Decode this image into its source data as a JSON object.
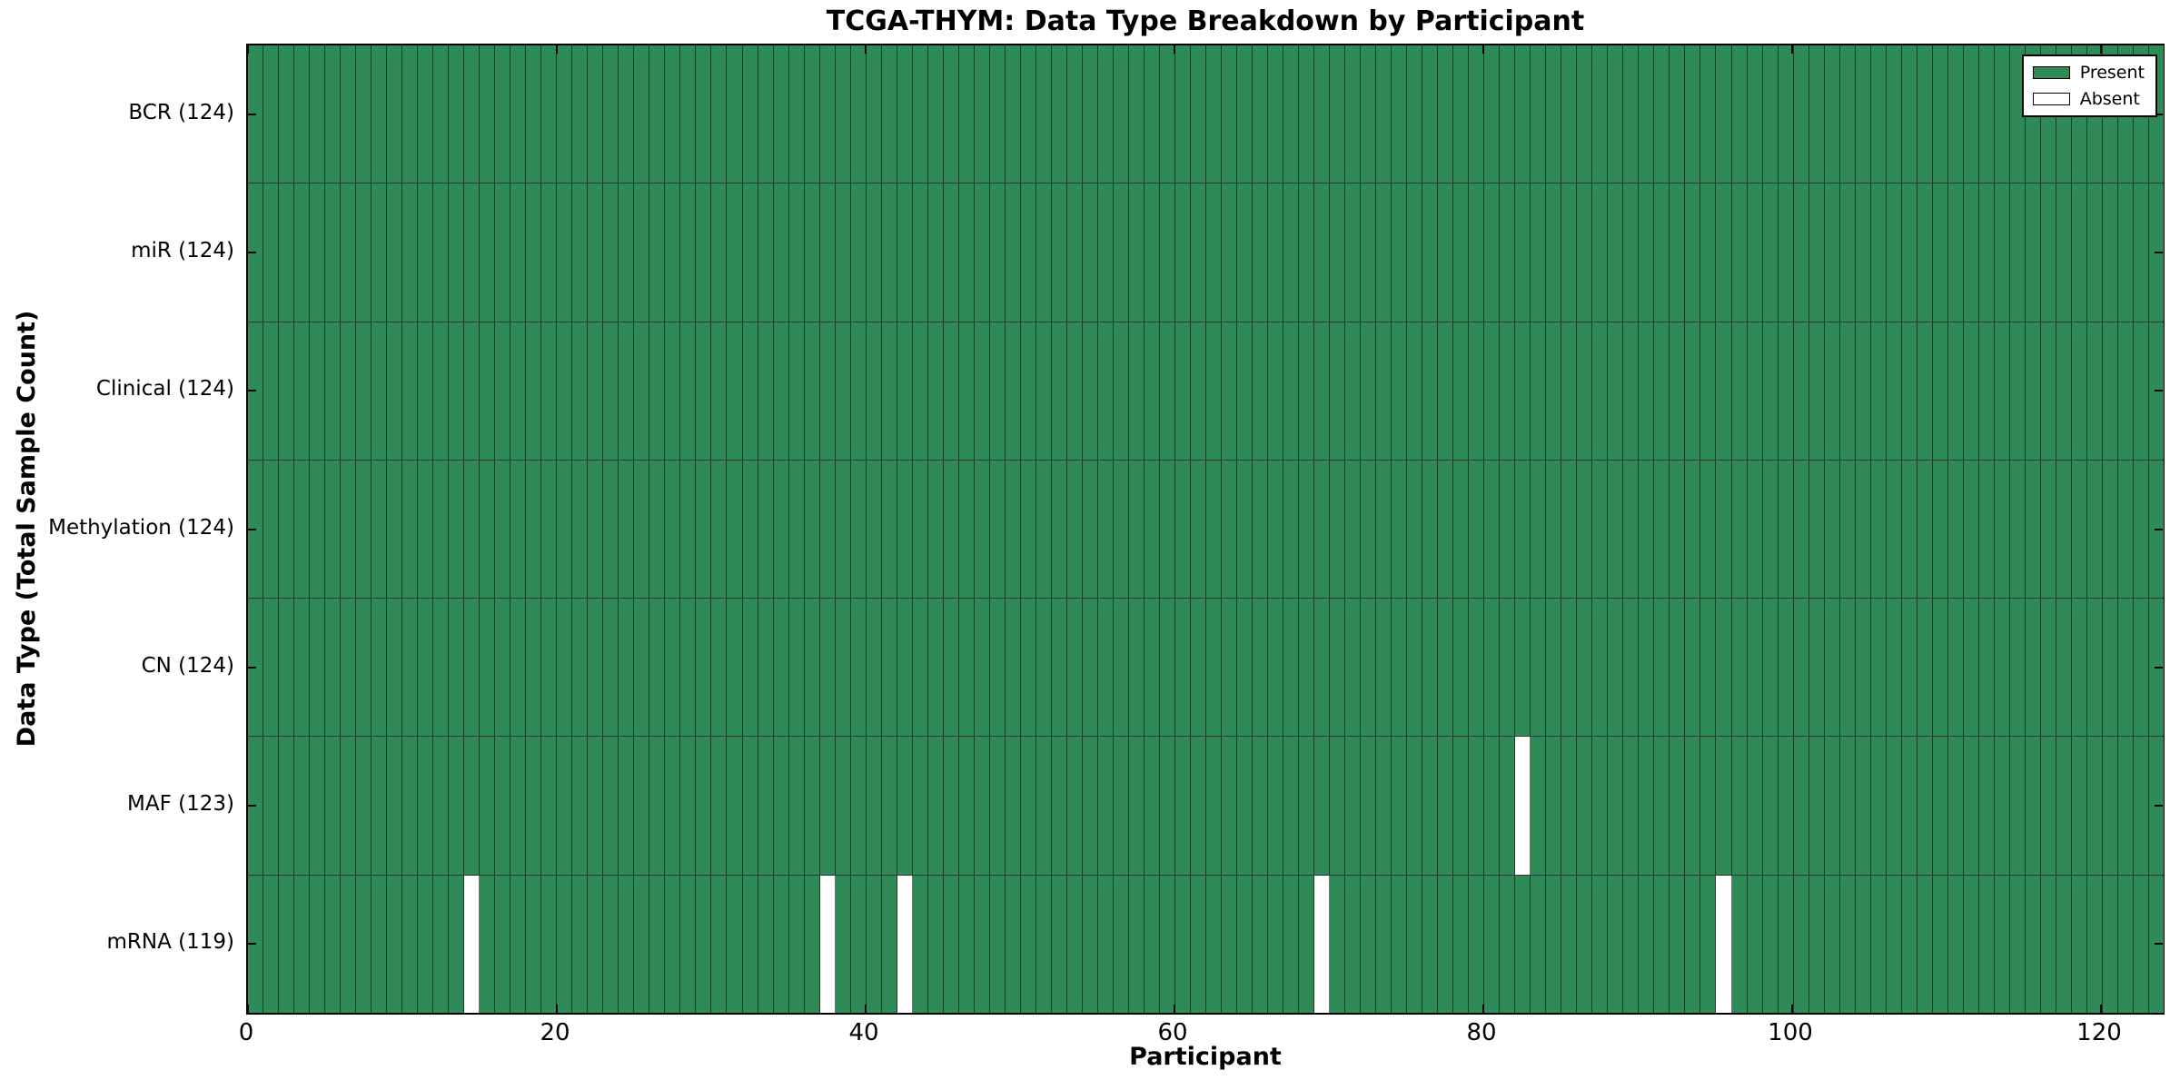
{
  "title": "TCGA-THYM: Data Type Breakdown by Participant",
  "axes": {
    "xlabel": "Participant",
    "ylabel": "Data Type (Total Sample Count)"
  },
  "legend": {
    "items": [
      {
        "label": "Present",
        "color": "#2e8b57"
      },
      {
        "label": "Absent",
        "color": "#ffffff"
      }
    ]
  },
  "chart_data": {
    "type": "heatmap",
    "title": "TCGA-THYM: Data Type Breakdown by Participant",
    "xlabel": "Participant",
    "ylabel": "Data Type (Total Sample Count)",
    "x_ticks": [
      0,
      20,
      40,
      60,
      80,
      100,
      120
    ],
    "x_range": [
      0,
      124
    ],
    "n_participants": 124,
    "n_rows": 7,
    "present_color": "#2e8b57",
    "absent_color": "#ffffff",
    "grid": true,
    "legend_position": "upper right",
    "legend_entries": [
      "Present",
      "Absent"
    ],
    "rows": [
      {
        "name": "BCR",
        "label": "BCR (124)",
        "total_samples": 124,
        "absent_participants": []
      },
      {
        "name": "miR",
        "label": "miR (124)",
        "total_samples": 124,
        "absent_participants": []
      },
      {
        "name": "Clinical",
        "label": "Clinical (124)",
        "total_samples": 124,
        "absent_participants": []
      },
      {
        "name": "Methylation",
        "label": "Methylation (124)",
        "total_samples": 124,
        "absent_participants": []
      },
      {
        "name": "CN",
        "label": "CN (124)",
        "total_samples": 124,
        "absent_participants": []
      },
      {
        "name": "MAF",
        "label": "MAF (123)",
        "total_samples": 123,
        "absent_participants": [
          82
        ]
      },
      {
        "name": "mRNA",
        "label": "mRNA (119)",
        "total_samples": 119,
        "absent_participants": [
          14,
          37,
          42,
          69,
          95
        ]
      }
    ]
  }
}
